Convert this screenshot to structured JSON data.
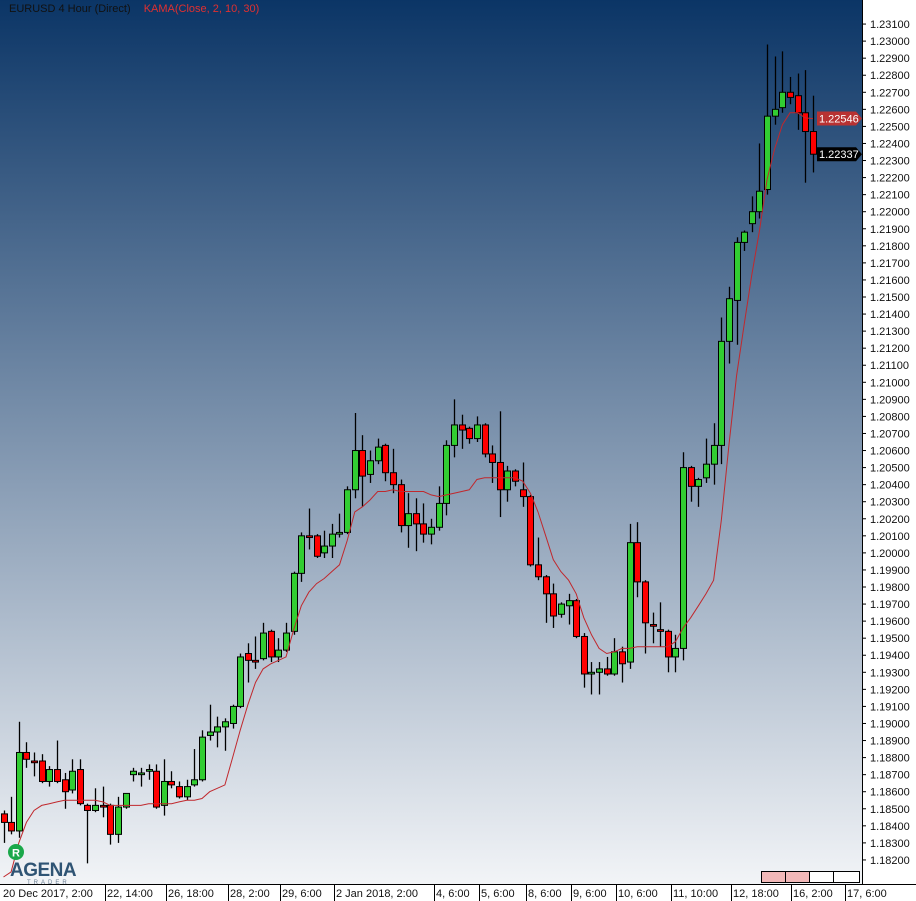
{
  "header": {
    "instrument": "EURUSD 4 Hour (Direct)",
    "indicator": "KAMA(Close, 2, 10, 30)"
  },
  "logo": {
    "text": "AGENA",
    "subtext": "TRADER",
    "badge": "R"
  },
  "colors": {
    "up": "#32cd32",
    "down": "#ff0000",
    "kama": "#c0282d",
    "kama_badge": "#b83232",
    "last_badge": "#000000",
    "bg_top": "#0b3566",
    "bg_bottom": "#f2f4f7"
  },
  "chart_data": {
    "type": "candlestick",
    "title": "",
    "xlabel": "",
    "ylabel": "",
    "ylim": [
      1.18059,
      1.23241
    ],
    "grid": false,
    "yticks": [
      "1.18200",
      "1.18300",
      "1.18400",
      "1.18500",
      "1.18600",
      "1.18700",
      "1.18800",
      "1.18900",
      "1.19000",
      "1.19100",
      "1.19200",
      "1.19300",
      "1.19400",
      "1.19500",
      "1.19600",
      "1.19700",
      "1.19800",
      "1.19900",
      "1.20000",
      "1.20100",
      "1.20200",
      "1.20300",
      "1.20400",
      "1.20500",
      "1.20600",
      "1.20700",
      "1.20800",
      "1.20900",
      "1.21000",
      "1.21100",
      "1.21200",
      "1.21300",
      "1.21400",
      "1.21500",
      "1.21600",
      "1.21700",
      "1.21800",
      "1.21900",
      "1.22000",
      "1.22100",
      "1.22200",
      "1.22300",
      "1.22400",
      "1.22500",
      "1.22600",
      "1.22700",
      "1.22800",
      "1.22900",
      "1.23000",
      "1.23100"
    ],
    "xticks": [
      "20 Dec 2017, 2:00",
      "22, 14:00",
      "26, 18:00",
      "28, 2:00",
      "29, 6:00",
      "2 Jan 2018, 2:00",
      "4, 6:00",
      "5, 6:00",
      "8, 6:00",
      "9, 6:00",
      "10, 6:00",
      "11, 10:00",
      "12, 18:00",
      "16, 2:00",
      "17, 6:00"
    ],
    "ohlc_fields": [
      "open",
      "high",
      "low",
      "close"
    ],
    "candles": [
      [
        1.1847,
        1.1849,
        1.183,
        1.1842
      ],
      [
        1.1842,
        1.1857,
        1.1835,
        1.1837
      ],
      [
        1.1837,
        1.1901,
        1.1833,
        1.1883
      ],
      [
        1.1883,
        1.1889,
        1.1874,
        1.1879
      ],
      [
        1.1878,
        1.1883,
        1.1869,
        1.1877
      ],
      [
        1.1878,
        1.1882,
        1.1865,
        1.1866
      ],
      [
        1.1866,
        1.1875,
        1.1863,
        1.1873
      ],
      [
        1.1873,
        1.189,
        1.1865,
        1.1866
      ],
      [
        1.1867,
        1.1871,
        1.185,
        1.186
      ],
      [
        1.1861,
        1.1879,
        1.1859,
        1.1872
      ],
      [
        1.1873,
        1.1879,
        1.1852,
        1.1853
      ],
      [
        1.1852,
        1.1853,
        1.1818,
        1.1849
      ],
      [
        1.1849,
        1.1862,
        1.1848,
        1.1852
      ],
      [
        1.1852,
        1.1863,
        1.1845,
        1.1851
      ],
      [
        1.1852,
        1.1853,
        1.1829,
        1.1835
      ],
      [
        1.1835,
        1.1857,
        1.183,
        1.1851
      ],
      [
        1.1851,
        1.1859,
        1.185,
        1.1859
      ],
      [
        1.187,
        1.1874,
        1.1866,
        1.1872
      ],
      [
        1.187,
        1.1874,
        1.1863,
        1.1871
      ],
      [
        1.1872,
        1.1876,
        1.1867,
        1.1873
      ],
      [
        1.1872,
        1.1876,
        1.185,
        1.1851
      ],
      [
        1.1852,
        1.1879,
        1.1846,
        1.1866
      ],
      [
        1.1866,
        1.1872,
        1.1862,
        1.1864
      ],
      [
        1.1863,
        1.1866,
        1.1856,
        1.1857
      ],
      [
        1.1857,
        1.1867,
        1.1855,
        1.1863
      ],
      [
        1.1864,
        1.1885,
        1.1863,
        1.1867
      ],
      [
        1.1867,
        1.1896,
        1.1866,
        1.1892
      ],
      [
        1.1893,
        1.1911,
        1.189,
        1.1895
      ],
      [
        1.1895,
        1.1904,
        1.1886,
        1.1898
      ],
      [
        1.1898,
        1.1903,
        1.1884,
        1.1901
      ],
      [
        1.19,
        1.1911,
        1.1897,
        1.191
      ],
      [
        1.191,
        1.1941,
        1.1909,
        1.1939
      ],
      [
        1.1941,
        1.1947,
        1.1924,
        1.1937
      ],
      [
        1.1937,
        1.1951,
        1.1932,
        1.1936
      ],
      [
        1.1938,
        1.1959,
        1.1937,
        1.1953
      ],
      [
        1.1954,
        1.1955,
        1.1936,
        1.1939
      ],
      [
        1.1939,
        1.195,
        1.1936,
        1.1943
      ],
      [
        1.1943,
        1.1959,
        1.1942,
        1.1953
      ],
      [
        1.1954,
        1.1989,
        1.1952,
        1.1988
      ],
      [
        1.1988,
        1.2012,
        1.1983,
        1.201
      ],
      [
        1.201,
        1.2026,
        1.2002,
        1.2009
      ],
      [
        1.201,
        1.2011,
        1.1997,
        1.1998
      ],
      [
        1.2,
        1.2013,
        1.1997,
        1.2004
      ],
      [
        1.2004,
        1.2017,
        1.1997,
        1.2011
      ],
      [
        1.2011,
        1.2023,
        1.2009,
        1.2012
      ],
      [
        1.2012,
        1.2039,
        1.2011,
        1.2037
      ],
      [
        1.2037,
        1.2082,
        1.2032,
        1.206
      ],
      [
        1.206,
        1.2069,
        1.2027,
        1.2045
      ],
      [
        1.2046,
        1.206,
        1.2041,
        1.2054
      ],
      [
        1.2054,
        1.2067,
        1.2052,
        1.2062
      ],
      [
        1.2063,
        1.2064,
        1.2042,
        1.2047
      ],
      [
        1.2047,
        1.2061,
        1.2035,
        1.204
      ],
      [
        1.204,
        1.2043,
        1.2012,
        1.2016
      ],
      [
        1.2016,
        1.2035,
        1.2003,
        1.2023
      ],
      [
        1.2023,
        1.2032,
        1.2001,
        1.2017
      ],
      [
        1.2017,
        1.2029,
        1.2006,
        1.2011
      ],
      [
        1.2011,
        1.202,
        1.2005,
        1.2015
      ],
      [
        1.2015,
        1.2039,
        1.2013,
        1.2029
      ],
      [
        1.2029,
        1.2066,
        1.2022,
        1.2063
      ],
      [
        1.2063,
        1.209,
        1.2056,
        1.2075
      ],
      [
        1.2075,
        1.2081,
        1.2061,
        1.2072
      ],
      [
        1.2073,
        1.2074,
        1.2064,
        1.2067
      ],
      [
        1.2067,
        1.208,
        1.2065,
        1.2075
      ],
      [
        1.2075,
        1.2076,
        1.2056,
        1.2058
      ],
      [
        1.2058,
        1.2063,
        1.2041,
        1.2053
      ],
      [
        1.2053,
        1.2083,
        1.2021,
        1.2037
      ],
      [
        1.2037,
        1.2051,
        1.203,
        1.2048
      ],
      [
        1.2048,
        1.2049,
        1.2039,
        1.2042
      ],
      [
        1.2037,
        1.2053,
        1.2027,
        1.2033
      ],
      [
        1.2033,
        1.2034,
        1.1992,
        1.1993
      ],
      [
        1.1993,
        1.2009,
        1.1984,
        1.1986
      ],
      [
        1.1986,
        1.1987,
        1.1959,
        1.1976
      ],
      [
        1.1976,
        1.1982,
        1.1956,
        1.1963
      ],
      [
        1.1964,
        1.1971,
        1.1962,
        1.197
      ],
      [
        1.1969,
        1.1976,
        1.1958,
        1.1972
      ],
      [
        1.1972,
        1.1973,
        1.195,
        1.1951
      ],
      [
        1.1951,
        1.1953,
        1.1921,
        1.1929
      ],
      [
        1.1929,
        1.1936,
        1.1917,
        1.193
      ],
      [
        1.193,
        1.1936,
        1.1917,
        1.1932
      ],
      [
        1.1932,
        1.1939,
        1.1928,
        1.1929
      ],
      [
        1.1929,
        1.195,
        1.1928,
        1.1942
      ],
      [
        1.1942,
        1.1945,
        1.1924,
        1.1935
      ],
      [
        1.1936,
        1.2017,
        1.1932,
        1.2006
      ],
      [
        1.2006,
        1.2018,
        1.1974,
        1.1983
      ],
      [
        1.1983,
        1.1984,
        1.1941,
        1.1959
      ],
      [
        1.1958,
        1.1965,
        1.1947,
        1.1957
      ],
      [
        1.1955,
        1.1971,
        1.1945,
        1.1954
      ],
      [
        1.1954,
        1.1955,
        1.193,
        1.1939
      ],
      [
        1.1939,
        1.1952,
        1.193,
        1.1944
      ],
      [
        1.1944,
        1.2059,
        1.1937,
        1.205
      ],
      [
        1.205,
        1.2051,
        1.203,
        1.2039
      ],
      [
        1.2039,
        1.2044,
        1.2027,
        1.2043
      ],
      [
        1.2044,
        1.2067,
        1.2041,
        1.2052
      ],
      [
        1.2052,
        1.2076,
        1.204,
        1.2063
      ],
      [
        1.2063,
        1.2138,
        1.2052,
        1.2124
      ],
      [
        1.2124,
        1.2156,
        1.2111,
        1.2149
      ],
      [
        1.2148,
        1.2185,
        1.2122,
        1.2182
      ],
      [
        1.2182,
        1.2189,
        1.2177,
        1.2188
      ],
      [
        1.2193,
        1.2209,
        1.2188,
        1.22
      ],
      [
        1.22,
        1.224,
        1.2196,
        1.2212
      ],
      [
        1.2213,
        1.2298,
        1.221,
        1.2256
      ],
      [
        1.2256,
        1.2291,
        1.2251,
        1.226
      ],
      [
        1.2261,
        1.2294,
        1.2258,
        1.227
      ],
      [
        1.227,
        1.2279,
        1.2263,
        1.2267
      ],
      [
        1.2268,
        1.2281,
        1.2248,
        1.2258
      ],
      [
        1.2258,
        1.2283,
        1.2217,
        1.2247
      ],
      [
        1.2247,
        1.2268,
        1.2223,
        1.22337
      ]
    ],
    "kama": [
      1.181,
      1.1813,
      1.183,
      1.1842,
      1.1849,
      1.1852,
      1.1853,
      1.1854,
      1.1855,
      1.1855,
      1.1855,
      1.1855,
      1.1855,
      1.1854,
      1.1852,
      1.1852,
      1.1852,
      1.1852,
      1.1852,
      1.1853,
      1.1853,
      1.1853,
      1.1853,
      1.1854,
      1.1855,
      1.1855,
      1.1856,
      1.186,
      1.1862,
      1.1864,
      1.188,
      1.1896,
      1.1911,
      1.1924,
      1.1932,
      1.1935,
      1.1937,
      1.1939,
      1.1955,
      1.1969,
      1.1977,
      1.1982,
      1.1985,
      1.1989,
      1.1993,
      1.2007,
      1.2024,
      1.2027,
      1.2031,
      1.2036,
      1.2036,
      1.2037,
      1.2036,
      1.2036,
      1.2036,
      1.2036,
      1.2034,
      1.2033,
      1.2034,
      1.2035,
      1.2036,
      1.2037,
      1.2043,
      1.2044,
      1.2044,
      1.2044,
      1.2044,
      1.2044,
      1.2042,
      1.2035,
      1.2024,
      1.201,
      1.1996,
      1.1989,
      1.1984,
      1.1976,
      1.1962,
      1.1952,
      1.1944,
      1.1941,
      1.1942,
      1.1944,
      1.1944,
      1.1945,
      1.1945,
      1.1945,
      1.1945,
      1.1945,
      1.1948,
      1.1956,
      1.1962,
      1.1969,
      1.1976,
      1.1984,
      1.2019,
      1.2063,
      1.2104,
      1.2134,
      1.2163,
      1.2189,
      1.2219,
      1.2237,
      1.2251,
      1.2258,
      1.2258,
      1.2255,
      1.22546
    ],
    "kama_label": "1.22546",
    "last_price_label": "1.22337"
  }
}
